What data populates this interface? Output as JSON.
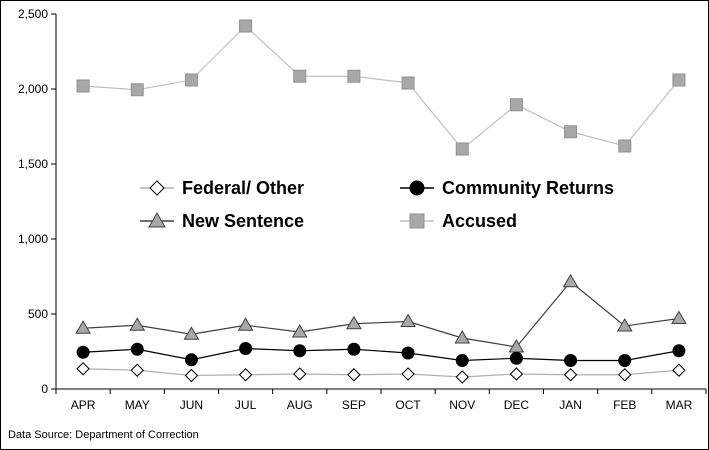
{
  "chart_data": {
    "type": "line",
    "categories": [
      "APR",
      "MAY",
      "JUN",
      "JUL",
      "AUG",
      "SEP",
      "OCT",
      "NOV",
      "DEC",
      "JAN",
      "FEB",
      "MAR"
    ],
    "ylim": [
      0,
      2500
    ],
    "yticks": [
      0,
      500,
      1000,
      1500,
      2000,
      2500
    ],
    "ytick_labels": [
      "0",
      "500",
      "1,000",
      "1,500",
      "2,000",
      "2,500"
    ],
    "grid": false,
    "legend_placement": "center",
    "series": [
      {
        "name": "Federal/ Other",
        "marker": "diamond-open",
        "line_color": "#b0b0b0",
        "marker_fill": "#ffffff",
        "values": [
          135,
          125,
          90,
          95,
          100,
          95,
          100,
          80,
          100,
          95,
          95,
          125
        ]
      },
      {
        "name": "Community Returns",
        "marker": "circle-filled",
        "line_color": "#000000",
        "marker_fill": "#000000",
        "values": [
          245,
          265,
          195,
          270,
          255,
          265,
          240,
          190,
          205,
          190,
          190,
          255
        ]
      },
      {
        "name": "New Sentence",
        "marker": "triangle",
        "line_color": "#404040",
        "marker_fill": "#a8a8a8",
        "values": [
          405,
          425,
          365,
          425,
          380,
          435,
          450,
          340,
          280,
          715,
          420,
          470
        ]
      },
      {
        "name": "Accused",
        "marker": "square",
        "line_color": "#c0c0c0",
        "marker_fill": "#a8a8a8",
        "values": [
          2020,
          1995,
          2060,
          2420,
          2085,
          2085,
          2040,
          1600,
          1895,
          1715,
          1620,
          2060
        ]
      }
    ]
  },
  "source_text": "Data Source: Department of Correction"
}
